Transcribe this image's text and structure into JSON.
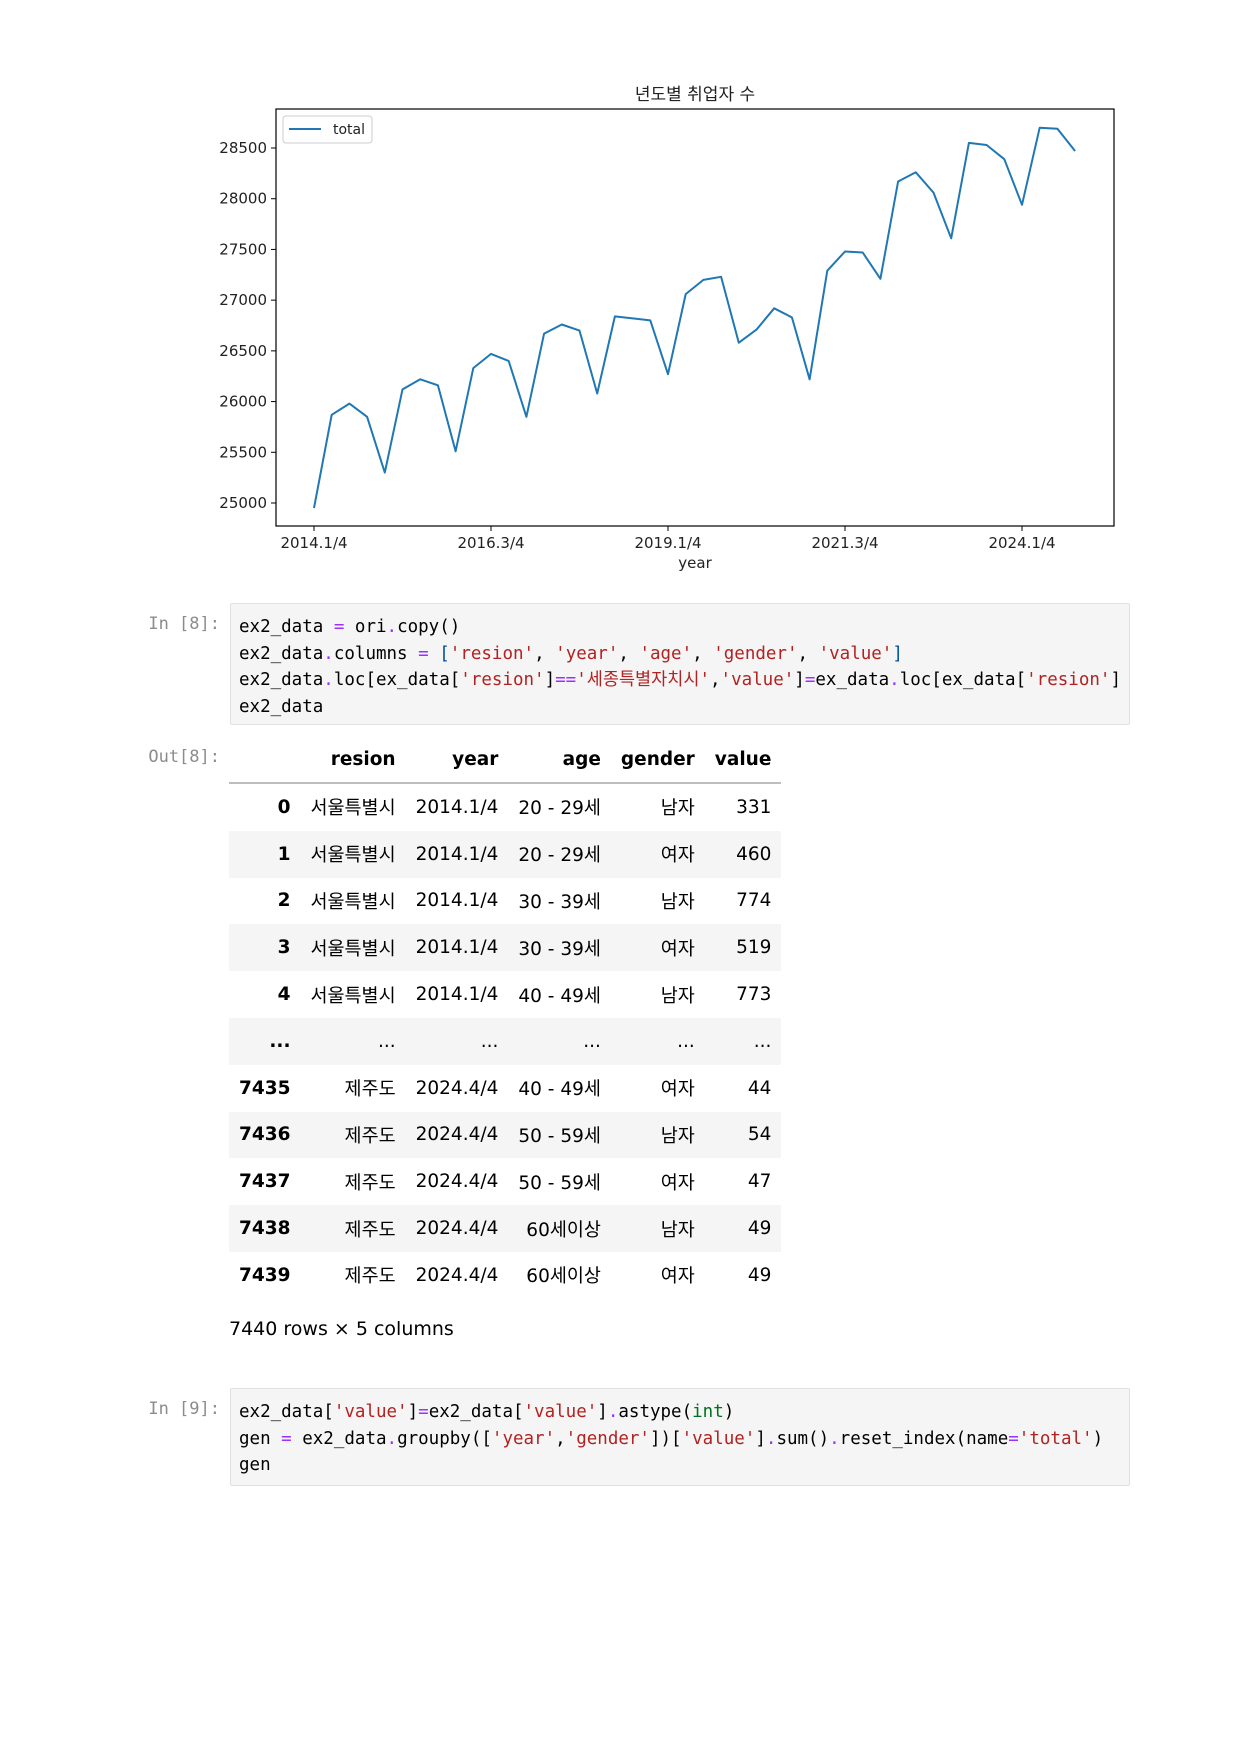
{
  "chart_data": {
    "type": "line",
    "title": "년도별 취업자 수",
    "xlabel": "year",
    "ylabel": "",
    "legend": {
      "labels": [
        "total"
      ],
      "placement": "top-left"
    },
    "grid": false,
    "ylim": [
      24800,
      28800
    ],
    "yticks": [
      25000,
      25500,
      26000,
      26500,
      27000,
      27500,
      28000,
      28500
    ],
    "xticks": [
      {
        "index": 0,
        "label": "2014.1/4"
      },
      {
        "index": 10,
        "label": "2016.3/4"
      },
      {
        "index": 20,
        "label": "2019.1/4"
      },
      {
        "index": 30,
        "label": "2021.3/4"
      },
      {
        "index": 40,
        "label": "2024.1/4"
      }
    ],
    "series": [
      {
        "name": "total",
        "color": "#1f77b4",
        "values": [
          24950,
          25870,
          25980,
          25850,
          25300,
          26120,
          26220,
          26160,
          25510,
          26330,
          26470,
          26400,
          25850,
          26670,
          26760,
          26700,
          26080,
          26840,
          26820,
          26800,
          26270,
          27060,
          27200,
          27230,
          26580,
          26710,
          26920,
          26830,
          26220,
          27290,
          27480,
          27470,
          27210,
          28170,
          28260,
          28060,
          27610,
          28550,
          28530,
          28390,
          27940,
          28700,
          28690,
          28470
        ]
      }
    ]
  },
  "cells": [
    {
      "prompt": "In [8]:",
      "lines": [
        [
          [
            "t",
            "ex2_data "
          ],
          [
            "o",
            "="
          ],
          [
            "t",
            " ori"
          ],
          [
            "o",
            "."
          ],
          [
            "t",
            "copy()"
          ]
        ],
        [
          [
            "t",
            "ex2_data"
          ],
          [
            "o",
            "."
          ],
          [
            "t",
            "columns "
          ],
          [
            "o",
            "="
          ],
          [
            "t",
            " "
          ],
          [
            "b",
            "["
          ],
          [
            "s",
            "'resion'"
          ],
          [
            "t",
            ", "
          ],
          [
            "s",
            "'year'"
          ],
          [
            "t",
            ", "
          ],
          [
            "s",
            "'age'"
          ],
          [
            "t",
            ", "
          ],
          [
            "s",
            "'gender'"
          ],
          [
            "t",
            ", "
          ],
          [
            "s",
            "'value'"
          ],
          [
            "b",
            "]"
          ]
        ],
        [
          [
            "t",
            "ex2_data"
          ],
          [
            "o",
            "."
          ],
          [
            "t",
            "loc[ex_data["
          ],
          [
            "s",
            "'resion'"
          ],
          [
            "t",
            "]"
          ],
          [
            "o",
            "=="
          ],
          [
            "s",
            "'세종특별자치시'"
          ],
          [
            "t",
            ","
          ],
          [
            "s",
            "'value'"
          ],
          [
            "t",
            "]"
          ],
          [
            "o",
            "="
          ],
          [
            "t",
            "ex_data"
          ],
          [
            "o",
            "."
          ],
          [
            "t",
            "loc[ex_data["
          ],
          [
            "s",
            "'resion'"
          ],
          [
            "t",
            "]"
          ]
        ],
        [
          [
            "t",
            "ex2_data"
          ]
        ]
      ]
    },
    {
      "prompt": "In [9]:",
      "lines": [
        [
          [
            "t",
            "ex2_data["
          ],
          [
            "s",
            "'value'"
          ],
          [
            "t",
            "]"
          ],
          [
            "o",
            "="
          ],
          [
            "t",
            "ex2_data["
          ],
          [
            "s",
            "'value'"
          ],
          [
            "t",
            "]"
          ],
          [
            "o",
            "."
          ],
          [
            "t",
            "astype("
          ],
          [
            "i",
            "int"
          ],
          [
            "t",
            ")"
          ]
        ],
        [
          [
            "t",
            "gen "
          ],
          [
            "o",
            "="
          ],
          [
            "t",
            " ex2_data"
          ],
          [
            "o",
            "."
          ],
          [
            "t",
            "groupby(["
          ],
          [
            "s",
            "'year'"
          ],
          [
            "t",
            ","
          ],
          [
            "s",
            "'gender'"
          ],
          [
            "t",
            "])["
          ],
          [
            "s",
            "'value'"
          ],
          [
            "t",
            "]"
          ],
          [
            "o",
            "."
          ],
          [
            "t",
            "sum()"
          ],
          [
            "o",
            "."
          ],
          [
            "t",
            "reset_index(name"
          ],
          [
            "o",
            "="
          ],
          [
            "s",
            "'total'"
          ],
          [
            "t",
            ")"
          ]
        ],
        [
          [
            "t",
            "gen"
          ]
        ]
      ]
    }
  ],
  "output": {
    "prompt": "Out[8]:",
    "columns": [
      "",
      "resion",
      "year",
      "age",
      "gender",
      "value"
    ],
    "rows": [
      [
        "0",
        "서울특별시",
        "2014.1/4",
        "20 - 29세",
        "남자",
        "331"
      ],
      [
        "1",
        "서울특별시",
        "2014.1/4",
        "20 - 29세",
        "여자",
        "460"
      ],
      [
        "2",
        "서울특별시",
        "2014.1/4",
        "30 - 39세",
        "남자",
        "774"
      ],
      [
        "3",
        "서울특별시",
        "2014.1/4",
        "30 - 39세",
        "여자",
        "519"
      ],
      [
        "4",
        "서울특별시",
        "2014.1/4",
        "40 - 49세",
        "남자",
        "773"
      ],
      [
        "...",
        "...",
        "...",
        "...",
        "...",
        "..."
      ],
      [
        "7435",
        "제주도",
        "2024.4/4",
        "40 - 49세",
        "여자",
        "44"
      ],
      [
        "7436",
        "제주도",
        "2024.4/4",
        "50 - 59세",
        "남자",
        "54"
      ],
      [
        "7437",
        "제주도",
        "2024.4/4",
        "50 - 59세",
        "여자",
        "47"
      ],
      [
        "7438",
        "제주도",
        "2024.4/4",
        "60세이상",
        "남자",
        "49"
      ],
      [
        "7439",
        "제주도",
        "2024.4/4",
        "60세이상",
        "여자",
        "49"
      ]
    ],
    "shape_text": "7440 rows × 5 columns"
  }
}
